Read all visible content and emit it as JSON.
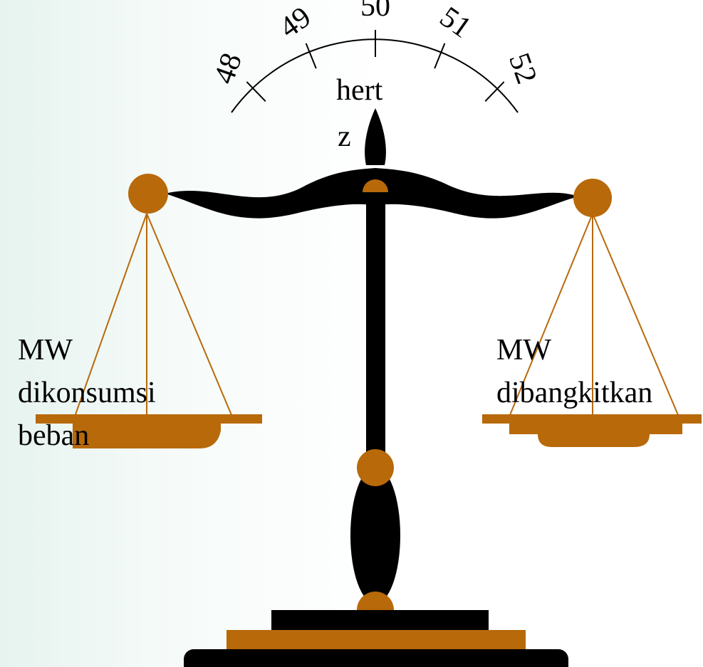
{
  "dial": {
    "ticks": [
      "48",
      "49",
      "50",
      "51",
      "52"
    ],
    "unit_line1": "hert",
    "unit_line2": "z"
  },
  "left_pan": {
    "lines": [
      "MW",
      "dikonsumsi",
      "beban"
    ]
  },
  "right_pan": {
    "lines": [
      "MW",
      "dibangkitkan"
    ]
  }
}
